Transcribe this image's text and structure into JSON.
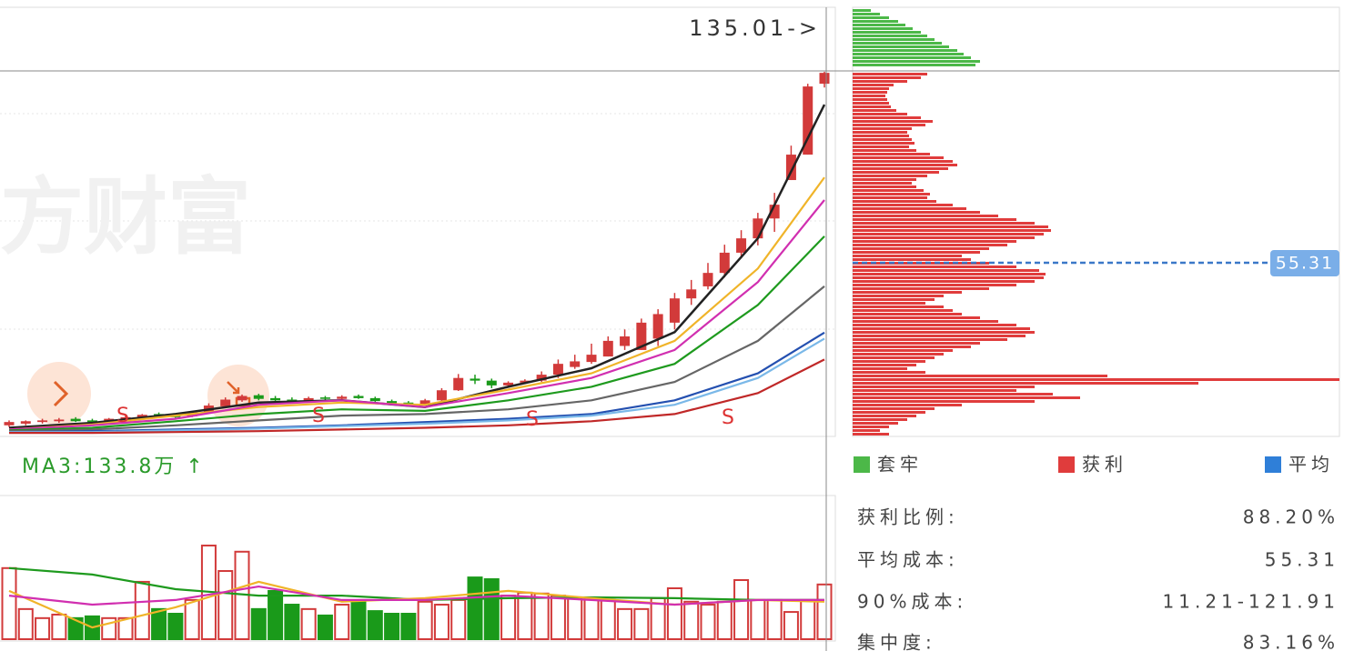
{
  "price_label": "135.01->",
  "avg_label": "55.31",
  "watermark": "方财富",
  "signals": [
    "S",
    "S",
    "S",
    "S"
  ],
  "kline": {
    "ylim": [
      24.9,
      181.5
    ],
    "log": true,
    "up_color": "#d23a3a",
    "down_color": "#1a9a1a",
    "candles": [
      [
        26.0,
        26.6,
        25.8,
        26.4
      ],
      [
        26.2,
        26.6,
        26.0,
        26.5
      ],
      [
        26.4,
        26.8,
        26.2,
        26.6
      ],
      [
        26.5,
        26.9,
        26.3,
        26.7
      ],
      [
        26.8,
        27.0,
        26.4,
        26.5
      ],
      [
        26.6,
        26.8,
        26.3,
        26.4
      ],
      [
        26.4,
        26.9,
        26.3,
        26.8
      ],
      [
        26.7,
        27.2,
        26.6,
        27.0
      ],
      [
        26.9,
        27.4,
        26.8,
        27.3
      ],
      [
        27.4,
        27.6,
        27.0,
        27.1
      ],
      [
        27.2,
        27.4,
        26.9,
        27.0
      ],
      [
        27.1,
        27.8,
        27.0,
        27.6
      ],
      [
        27.6,
        28.8,
        27.5,
        28.5
      ],
      [
        28.4,
        29.6,
        28.2,
        29.3
      ],
      [
        29.2,
        30.0,
        29.0,
        29.8
      ],
      [
        29.9,
        30.1,
        29.2,
        29.4
      ],
      [
        29.5,
        29.8,
        29.0,
        29.2
      ],
      [
        29.3,
        29.6,
        28.9,
        29.1
      ],
      [
        29.1,
        29.7,
        29.0,
        29.5
      ],
      [
        29.6,
        29.8,
        29.2,
        29.4
      ],
      [
        29.4,
        29.9,
        29.3,
        29.7
      ],
      [
        29.8,
        30.0,
        29.4,
        29.5
      ],
      [
        29.5,
        29.7,
        29.0,
        29.1
      ],
      [
        29.1,
        29.3,
        28.6,
        28.8
      ],
      [
        28.9,
        29.1,
        28.4,
        28.6
      ],
      [
        28.6,
        29.4,
        28.5,
        29.2
      ],
      [
        29.2,
        30.9,
        29.0,
        30.6
      ],
      [
        30.6,
        33.0,
        30.5,
        32.4
      ],
      [
        32.3,
        32.9,
        31.5,
        32.0
      ],
      [
        32.0,
        32.3,
        30.9,
        31.3
      ],
      [
        31.3,
        31.9,
        31.1,
        31.7
      ],
      [
        31.7,
        32.2,
        31.5,
        32.0
      ],
      [
        32.0,
        33.4,
        31.8,
        32.9
      ],
      [
        32.9,
        35.3,
        32.4,
        34.6
      ],
      [
        34.1,
        36.1,
        33.8,
        35.0
      ],
      [
        34.9,
        38.0,
        34.6,
        36.1
      ],
      [
        35.8,
        39.3,
        35.8,
        38.5
      ],
      [
        37.6,
        40.6,
        36.9,
        39.3
      ],
      [
        36.9,
        42.7,
        36.9,
        41.9
      ],
      [
        38.9,
        44.6,
        37.6,
        43.6
      ],
      [
        41.9,
        48.1,
        40.6,
        46.9
      ],
      [
        46.9,
        51.1,
        45.5,
        48.9
      ],
      [
        49.6,
        55.3,
        48.9,
        52.8
      ],
      [
        52.8,
        60.2,
        51.7,
        58.0
      ],
      [
        58.0,
        64.4,
        56.5,
        62.0
      ],
      [
        62.0,
        69.8,
        60.0,
        68.0
      ],
      [
        68.0,
        76.6,
        63.9,
        72.5
      ],
      [
        81.3,
        95.4,
        81.3,
        91.5
      ],
      [
        91.5,
        127.2,
        91.5,
        125.6
      ],
      [
        127.2,
        134.5,
        125.0,
        133.8
      ]
    ],
    "ma_index": [
      0,
      5,
      10,
      15,
      20,
      25,
      30,
      35,
      40,
      45,
      49
    ],
    "ma": [
      {
        "color": "#222222",
        "values": [
          25.7,
          26.3,
          27.4,
          28.9,
          29.2,
          28.3,
          31.1,
          33.9,
          40.1,
          62.0,
          115.4
        ]
      },
      {
        "color": "#f0b429",
        "values": [
          25.5,
          26.1,
          27.2,
          28.3,
          28.9,
          28.6,
          30.7,
          33.1,
          38.5,
          53.9,
          82.3
        ]
      },
      {
        "color": "#d12fb0",
        "values": [
          25.5,
          26.0,
          26.8,
          28.6,
          29.2,
          28.3,
          30.2,
          32.4,
          36.9,
          50.6,
          74.1
        ]
      },
      {
        "color": "#1e9a1e",
        "values": [
          25.4,
          25.7,
          26.5,
          27.4,
          28.0,
          27.8,
          29.2,
          31.1,
          34.6,
          45.5,
          62.6
        ]
      },
      {
        "color": "#666666",
        "values": [
          25.3,
          25.5,
          26.0,
          26.6,
          27.2,
          27.4,
          28.0,
          29.2,
          31.8,
          38.5,
          49.6
        ]
      },
      {
        "color": "#2450b0",
        "values": [
          25.2,
          25.3,
          25.5,
          25.7,
          26.0,
          26.4,
          26.8,
          27.4,
          29.2,
          33.1,
          40.0
        ]
      },
      {
        "color": "#7ab8e8",
        "values": [
          25.2,
          25.2,
          25.4,
          25.6,
          25.9,
          26.2,
          26.6,
          27.2,
          28.6,
          32.4,
          38.9
        ]
      },
      {
        "color": "#c02828",
        "values": [
          25.1,
          25.1,
          25.2,
          25.3,
          25.5,
          25.7,
          26.0,
          26.5,
          27.4,
          30.2,
          35.3
        ]
      }
    ]
  },
  "volume": {
    "label": "MA3:133.8万 ↑",
    "ylim": [
      0,
      491
    ],
    "values": [
      243,
      103,
      72,
      84,
      72,
      78,
      72,
      72,
      196,
      103,
      87,
      134,
      320,
      233,
      299,
      103,
      165,
      118,
      103,
      81,
      118,
      128,
      96,
      87,
      87,
      128,
      118,
      134,
      211,
      205,
      149,
      159,
      156,
      149,
      140,
      140,
      134,
      103,
      103,
      140,
      174,
      128,
      118,
      128,
      202,
      134,
      134,
      93,
      134,
      187
    ],
    "ma_index": [
      0,
      5,
      10,
      15,
      20,
      25,
      30,
      35,
      40,
      45,
      49
    ],
    "ma": [
      {
        "color": "#1e9a1e",
        "values": [
          243,
          221,
          171,
          149,
          149,
          134,
          140,
          143,
          140,
          134,
          134
        ]
      },
      {
        "color": "#f0b429",
        "values": [
          165,
          40,
          109,
          196,
          128,
          140,
          165,
          140,
          118,
          134,
          128
        ]
      },
      {
        "color": "#d12fb0",
        "values": [
          149,
          118,
          134,
          180,
          134,
          134,
          149,
          134,
          118,
          134,
          134
        ]
      }
    ]
  },
  "chips": {
    "xlim": [
      0,
      535
    ],
    "trapped_color": "#4cb848",
    "profit_color": "#e03c3c",
    "trapped": [
      20,
      30,
      40,
      50,
      58,
      66,
      75,
      82,
      90,
      98,
      106,
      115,
      122,
      130,
      140,
      135
    ],
    "profit": [
      82,
      75,
      60,
      45,
      40,
      38,
      36,
      38,
      40,
      42,
      48,
      60,
      75,
      88,
      80,
      65,
      60,
      62,
      65,
      68,
      62,
      70,
      85,
      100,
      110,
      115,
      105,
      95,
      82,
      70,
      65,
      70,
      78,
      85,
      82,
      92,
      110,
      125,
      140,
      160,
      180,
      200,
      215,
      218,
      210,
      200,
      180,
      170,
      150,
      140,
      120,
      130,
      150,
      180,
      205,
      212,
      210,
      200,
      180,
      150,
      120,
      100,
      90,
      80,
      100,
      110,
      120,
      140,
      160,
      180,
      195,
      200,
      190,
      170,
      140,
      130,
      110,
      100,
      90,
      80,
      70,
      60,
      80,
      280,
      535,
      380,
      200,
      180,
      220,
      250,
      200,
      120,
      90,
      80,
      70,
      60,
      50,
      40,
      30,
      40
    ]
  },
  "legend": [
    {
      "label": "套牢",
      "color": "#4cb848"
    },
    {
      "label": "获利",
      "color": "#e03c3c"
    },
    {
      "label": "平均",
      "color": "#2f7fd8"
    }
  ],
  "stats": [
    {
      "label": "获利比例:",
      "value": "88.20%"
    },
    {
      "label": "平均成本:",
      "value": "55.31"
    },
    {
      "label": "90%成本:",
      "value": "11.21-121.91"
    },
    {
      "label": "集中度:",
      "value": "83.16%"
    }
  ]
}
